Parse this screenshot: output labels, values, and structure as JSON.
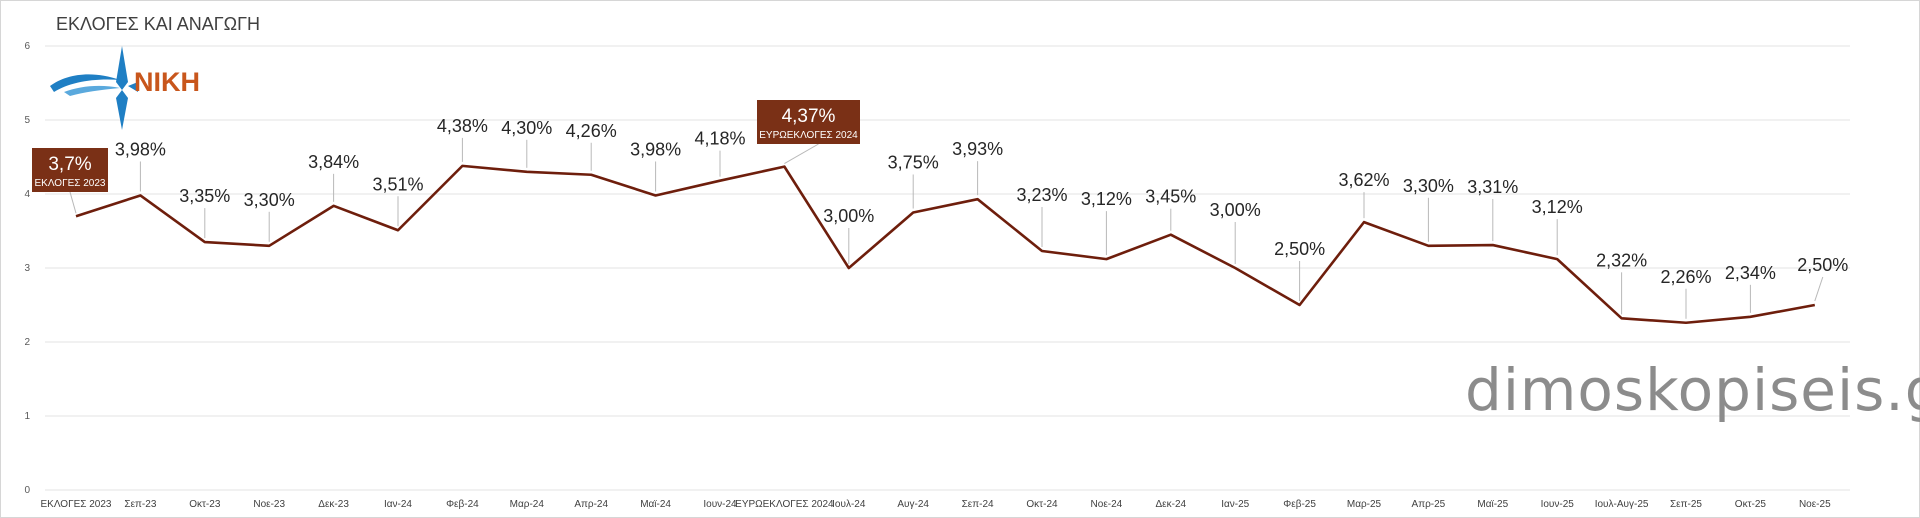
{
  "title": "ΕΚΛΟΓΕΣ ΚΑΙ ΑΝΑΓΩΓΗ",
  "logo": {
    "text": "NIKH"
  },
  "watermark": "dimoskopiseis.gr",
  "colors": {
    "line": "#6e1e0c",
    "callout": "#7a3016",
    "logo_blue": "#1f7fc4",
    "logo_text": "#c8561c"
  },
  "chart_data": {
    "type": "line",
    "title": "ΕΚΛΟΓΕΣ ΚΑΙ ΑΝΑΓΩΓΗ",
    "xlabel": "",
    "ylabel": "",
    "ylim": [
      0,
      6
    ],
    "yticks": [
      "0",
      "1",
      "2",
      "3",
      "4",
      "5",
      "6"
    ],
    "grid": true,
    "categories": [
      "ΕΚΛΟΓΕΣ 2023",
      "Σεπ-23",
      "Οκτ-23",
      "Νοε-23",
      "Δεκ-23",
      "Ιαν-24",
      "Φεβ-24",
      "Μαρ-24",
      "Απρ-24",
      "Μαϊ-24",
      "Ιουν-24",
      "ΕΥΡΩΕΚΛΟΓΕΣ 2024",
      "Ιουλ-24",
      "Αυγ-24",
      "Σεπ-24",
      "Οκτ-24",
      "Νοε-24",
      "Δεκ-24",
      "Ιαν-25",
      "Φεβ-25",
      "Μαρ-25",
      "Απρ-25",
      "Μαϊ-25",
      "Ιουν-25",
      "Ιουλ-Αυγ-25",
      "Σεπ-25",
      "Οκτ-25",
      "Νοε-25"
    ],
    "series": [
      {
        "name": "NIKH",
        "values": [
          3.7,
          3.98,
          3.35,
          3.3,
          3.84,
          3.51,
          4.38,
          4.3,
          4.26,
          3.98,
          4.18,
          4.37,
          3.0,
          3.75,
          3.93,
          3.23,
          3.12,
          3.45,
          3.0,
          2.5,
          3.62,
          3.3,
          3.31,
          3.12,
          2.32,
          2.26,
          2.34,
          2.5
        ],
        "labels": [
          "3,7%",
          "3,98%",
          "3,35%",
          "3,30%",
          "3,84%",
          "3,51%",
          "4,38%",
          "4,30%",
          "4,26%",
          "3,98%",
          "4,18%",
          "4,37%",
          "3,00%",
          "3,75%",
          "3,93%",
          "3,23%",
          "3,12%",
          "3,45%",
          "3,00%",
          "2,50%",
          "3,62%",
          "3,30%",
          "3,31%",
          "3,12%",
          "2,32%",
          "2,26%",
          "2,34%",
          "2,50%"
        ]
      }
    ],
    "annotations": [
      {
        "index": 0,
        "value": "3,7%",
        "text": "ΕΚΛΟΓΕΣ 2023"
      },
      {
        "index": 11,
        "value": "4,37%",
        "text": "ΕΥΡΩΕΚΛΟΓΕΣ 2024"
      }
    ]
  }
}
